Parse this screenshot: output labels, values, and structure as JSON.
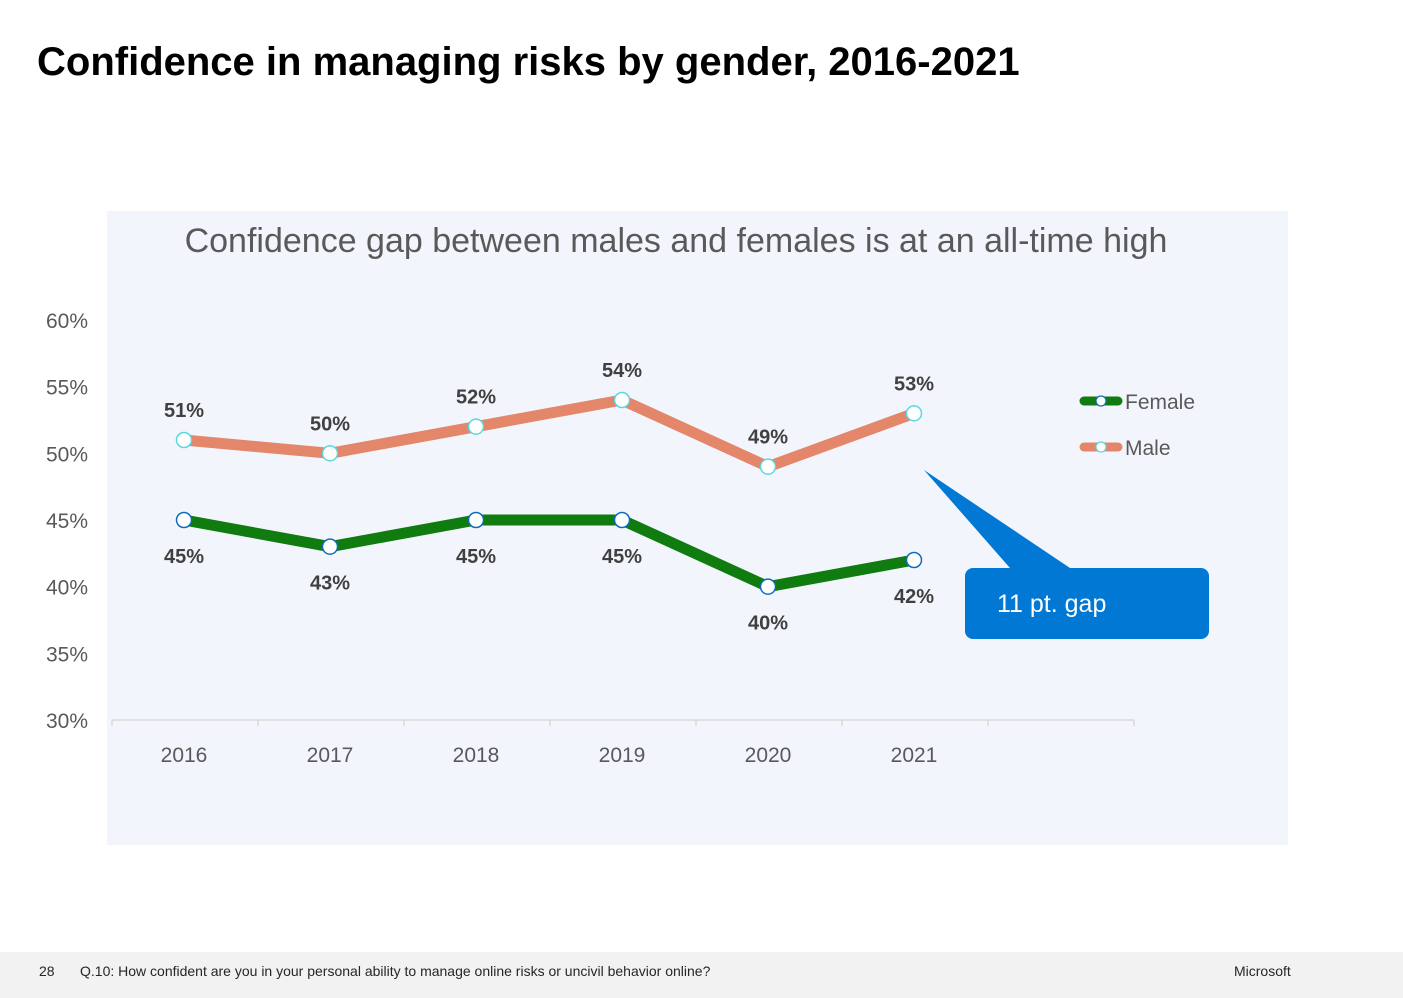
{
  "slide": {
    "title": "Confidence in managing risks by gender, 2016-2021"
  },
  "footer": {
    "page_number": "28",
    "question": "Q.10:  How confident are you in your personal ability to manage online risks or uncivil behavior online?",
    "brand": "Microsoft"
  },
  "callout": {
    "text": "11 pt. gap"
  },
  "colors": {
    "female": "#107c10",
    "male": "#e3866a",
    "marker_edge_male": "#5ad7e0",
    "marker_edge_female": "#0f6cbd",
    "callout": "#0078d4",
    "panel": "#f2f6fc"
  },
  "chart_data": {
    "type": "line",
    "title": "Confidence gap between males and females is at an all-time high",
    "xlabel": "",
    "ylabel": "",
    "categories": [
      "2016",
      "2017",
      "2018",
      "2019",
      "2020",
      "2021"
    ],
    "ylim": [
      30,
      60
    ],
    "yticks": [
      30,
      35,
      40,
      45,
      50,
      55,
      60
    ],
    "ytick_labels": [
      "30%",
      "35%",
      "40%",
      "45%",
      "50%",
      "55%",
      "60%"
    ],
    "grid": false,
    "legend_position": "right",
    "series": [
      {
        "name": "Female",
        "values": [
          45,
          43,
          45,
          45,
          40,
          42
        ],
        "labels": [
          "45%",
          "43%",
          "45%",
          "45%",
          "40%",
          "42%"
        ],
        "label_position": "below"
      },
      {
        "name": "Male",
        "values": [
          51,
          50,
          52,
          54,
          49,
          53
        ],
        "labels": [
          "51%",
          "50%",
          "52%",
          "54%",
          "49%",
          "53%"
        ],
        "label_position": "above"
      }
    ]
  }
}
